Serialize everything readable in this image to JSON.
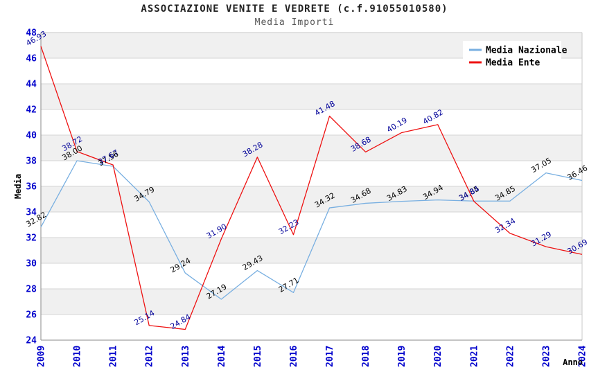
{
  "page": {
    "title": "ASSOCIAZIONE VENITE E VEDRETE (c.f.91055010580)",
    "subtitle": "Media Importi"
  },
  "colors": {
    "tick_label": "#0000cc",
    "band": "#f0f0f0",
    "gridline": "#d4d4d4",
    "frame": "#c8c8c8",
    "axis": "#888888",
    "axis_title": "#000000",
    "legend_bg": "#ffffff",
    "legend_text": "#000000"
  },
  "chart_data": {
    "type": "line",
    "title": "ASSOCIAZIONE VENITE E VEDRETE (c.f.91055010580)",
    "subtitle": "Media Importi",
    "xlabel": "Anno",
    "ylabel": "Media",
    "x_categories": [
      "2009",
      "2010",
      "2011",
      "2012",
      "2013",
      "2014",
      "2015",
      "2016",
      "2017",
      "2018",
      "2019",
      "2020",
      "2021",
      "2022",
      "2023",
      "2024"
    ],
    "ylim": [
      24,
      48
    ],
    "ytick_step": 2,
    "grid": true,
    "background_bands": "alternating gray/white from top, 2-unit tall",
    "legend_position": "top-right",
    "series": [
      {
        "name": "Media Nazionale",
        "color": "#78afe1",
        "label_color": "#000000",
        "values": [
          32.82,
          38.0,
          37.56,
          34.79,
          29.24,
          27.19,
          29.43,
          27.71,
          34.32,
          34.68,
          34.83,
          34.94,
          34.85,
          34.85,
          37.05,
          36.46
        ],
        "labels": [
          "32.82",
          "38.00",
          "37.56",
          "34.79",
          "29.24",
          "27.19",
          "29.43",
          "27.71",
          "34.32",
          "34.68",
          "34.83",
          "34.94",
          "34.85",
          "34.85",
          "37.05",
          "36.46"
        ]
      },
      {
        "name": "Media Ente",
        "color": "#ee1111",
        "label_color": "#000099",
        "values": [
          46.93,
          38.72,
          37.67,
          25.14,
          24.84,
          31.9,
          38.28,
          32.23,
          41.48,
          38.68,
          40.19,
          40.82,
          34.84,
          32.34,
          31.29,
          30.69
        ],
        "labels": [
          "46.93",
          "38.72",
          "37.67",
          "25.14",
          "24.84",
          "31.90",
          "38.28",
          "32.23",
          "41.48",
          "38.68",
          "40.19",
          "40.82",
          "34.84",
          "32.34",
          "31.29",
          "30.69"
        ]
      }
    ]
  }
}
